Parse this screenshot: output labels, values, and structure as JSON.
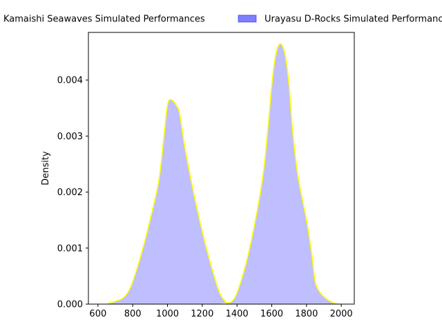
{
  "chart_data": {
    "type": "area",
    "title": "",
    "xlabel": "",
    "ylabel": "Density",
    "xlim": [
      545,
      2075
    ],
    "ylim": [
      0,
      0.00485
    ],
    "x_ticks": [
      600,
      800,
      1000,
      1200,
      1400,
      1600,
      1800,
      2000
    ],
    "y_ticks": [
      0.0,
      0.001,
      0.002,
      0.003,
      0.004
    ],
    "y_tick_labels": [
      "0.000",
      "0.001",
      "0.002",
      "0.003",
      "0.004"
    ],
    "grid": false,
    "legend_placement": "top-center, outside plot",
    "series": [
      {
        "name": "Kamaishi Seawaves Simulated Performances",
        "fill_color": "#0000ff",
        "line_color": "#ffff00",
        "x": [
          650,
          700,
          740,
          770,
          800,
          850,
          900,
          950,
          980,
          1000,
          1020,
          1050,
          1070,
          1100,
          1150,
          1200,
          1250,
          1300,
          1340
        ],
        "y": [
          0.0,
          5e-05,
          0.0001,
          0.0002,
          0.0004,
          0.0009,
          0.0015,
          0.0022,
          0.003,
          0.00355,
          0.00365,
          0.00355,
          0.0034,
          0.0028,
          0.002,
          0.0013,
          0.0007,
          0.0002,
          2e-05
        ]
      },
      {
        "name": "Urayasu D-Rocks Simulated Performances",
        "fill_color": "#0000ff",
        "line_color": "#ffff00",
        "x": [
          1300,
          1340,
          1370,
          1400,
          1450,
          1500,
          1550,
          1580,
          1600,
          1620,
          1640,
          1660,
          1680,
          1700,
          1720,
          1750,
          1800,
          1830,
          1850,
          1880,
          1920,
          1960,
          1990
        ],
        "y": [
          0.0,
          2e-05,
          5e-05,
          0.0002,
          0.0007,
          0.0014,
          0.0023,
          0.0032,
          0.0039,
          0.0044,
          0.00462,
          0.00462,
          0.0044,
          0.0039,
          0.0031,
          0.0023,
          0.0015,
          0.0009,
          0.0004,
          0.0002,
          8e-05,
          2e-05,
          0.0
        ]
      }
    ]
  }
}
